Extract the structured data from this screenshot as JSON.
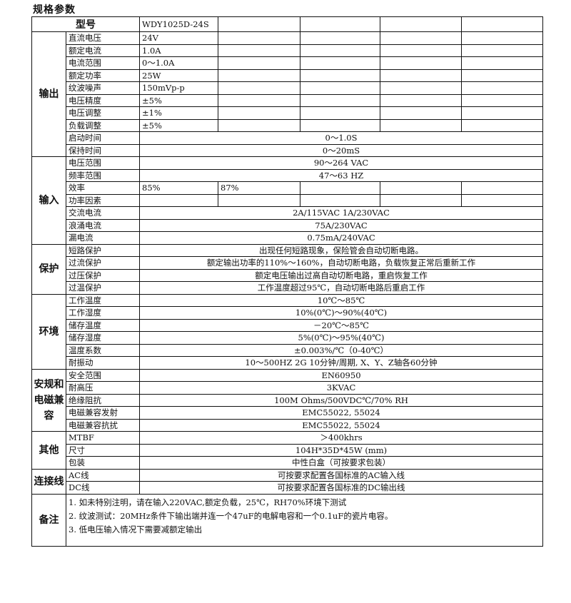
{
  "title": "规格参数",
  "model": {
    "label": "型号",
    "values": [
      "WDY1025D-24S",
      "",
      "",
      "",
      ""
    ]
  },
  "sections": [
    {
      "group": "输出",
      "rows": [
        {
          "label": "直流电压",
          "values": [
            "24V",
            "",
            "",
            "",
            ""
          ]
        },
        {
          "label": "额定电流",
          "values": [
            "1.0A",
            "",
            "",
            "",
            ""
          ]
        },
        {
          "label": "电流范围",
          "values": [
            "0～1.0A",
            "",
            "",
            "",
            ""
          ]
        },
        {
          "label": "额定功率",
          "values": [
            "25W",
            "",
            "",
            "",
            ""
          ]
        },
        {
          "label": "纹波噪声",
          "values": [
            "150mVp-p",
            "",
            "",
            "",
            ""
          ]
        },
        {
          "label": "电压精度",
          "values": [
            "±5%",
            "",
            "",
            "",
            ""
          ]
        },
        {
          "label": "电压调整",
          "values": [
            "±1%",
            "",
            "",
            "",
            ""
          ]
        },
        {
          "label": "负载调整",
          "values": [
            "±5%",
            "",
            "",
            "",
            ""
          ]
        },
        {
          "label": "启动时间",
          "value": "0～1.0S"
        },
        {
          "label": "保持时间",
          "value": "0～20mS"
        }
      ]
    },
    {
      "group": "输入",
      "rows": [
        {
          "label": "电压范围",
          "value": "90～264 VAC"
        },
        {
          "label": "频率范围",
          "value": "47～63 HZ"
        },
        {
          "label": "效率",
          "values": [
            "85%",
            "87%",
            "",
            "",
            ""
          ]
        },
        {
          "label": "功率因素",
          "values": [
            "",
            "",
            "",
            "",
            ""
          ]
        },
        {
          "label": "交流电流",
          "value": "2A/115VAC  1A/230VAC"
        },
        {
          "label": "浪涌电流",
          "value": "75A/230VAC"
        },
        {
          "label": "漏电流",
          "value": "0.75mA/240VAC"
        }
      ]
    },
    {
      "group": "保护",
      "rows": [
        {
          "label": "短路保护",
          "value": "出现任何短路现象，保险管会自动切断电路。"
        },
        {
          "label": "过流保护",
          "value": "额定输出功率的110%～160%，自动切断电路，负载恢复正常后重新工作"
        },
        {
          "label": "过压保护",
          "value": "额定电压输出过高自动切断电路，重启恢复工作"
        },
        {
          "label": "过温保护",
          "value": "工作温度超过95℃，自动切断电路后重启工作"
        }
      ]
    },
    {
      "group": "环境",
      "rows": [
        {
          "label": "工作温度",
          "value": "10℃～85℃"
        },
        {
          "label": "工作湿度",
          "value": "10%(0℃)～90%(40℃)"
        },
        {
          "label": "储存温度",
          "value": "－20℃～85℃"
        },
        {
          "label": "储存湿度",
          "value": "5%(0℃)～95%(40℃)"
        },
        {
          "label": "温度系数",
          "value": "±0.003%/℃（0-40℃）"
        },
        {
          "label": "耐振动",
          "value": "10～500HZ 2G 10分钟/周期, X、Y、Z轴各60分钟"
        }
      ]
    },
    {
      "group": "安规和电磁兼容",
      "rows": [
        {
          "label": "安全范围",
          "value": "EN60950"
        },
        {
          "label": "耐高压",
          "value": "3KVAC"
        },
        {
          "label": "绝缘阻抗",
          "value": "100M Ohms/500VDC℃/70% RH"
        },
        {
          "label": "电磁兼容发射",
          "value": "EMC55022, 55024"
        },
        {
          "label": "电磁兼容抗扰",
          "value": "EMC55022, 55024"
        }
      ]
    },
    {
      "group": "其他",
      "rows": [
        {
          "label": "MTBF",
          "value": "＞400khrs"
        },
        {
          "label": "尺寸",
          "value": "104H*35D*45W (mm)"
        },
        {
          "label": "包装",
          "value": "中性白盒（可按要求包装）"
        }
      ]
    },
    {
      "group": "连接线",
      "rows": [
        {
          "label": "AC线",
          "value": "可按要求配置各国标准的AC输入线"
        },
        {
          "label": "DC线",
          "value": "可按要求配置各国标准的DC输出线"
        }
      ]
    }
  ],
  "notes": {
    "group": "备注",
    "lines": [
      "1. 如未特别注明，请在输入220VAC,额定负载，25℃，RH70%环境下测试",
      "2. 纹波测试：20MHz条件下输出端并连一个47uF的电解电容和一个0.1uF的瓷片电容。",
      "3. 低电压输入情况下需要减额定输出"
    ]
  }
}
